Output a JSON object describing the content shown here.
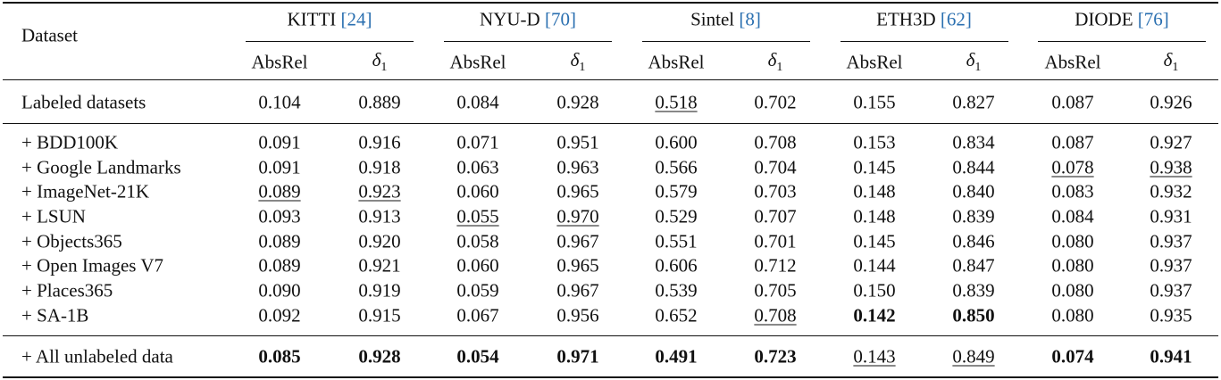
{
  "table": {
    "corner": "Dataset",
    "datasets": [
      {
        "name": "KITTI",
        "ref": "[24]"
      },
      {
        "name": "NYU-D",
        "ref": "[70]"
      },
      {
        "name": "Sintel",
        "ref": "[8]"
      },
      {
        "name": "ETH3D",
        "ref": "[62]"
      },
      {
        "name": "DIODE",
        "ref": "[76]"
      }
    ],
    "metrics": [
      {
        "text": "AbsRel"
      },
      {
        "text": "δ",
        "sub": "1"
      }
    ],
    "sections": [
      [
        {
          "label": "Labeled datasets",
          "values": [
            "0.104",
            "0.889",
            "0.084",
            "0.928",
            "0.518",
            "0.702",
            "0.155",
            "0.827",
            "0.087",
            "0.926"
          ],
          "bold": [],
          "underline": [
            4
          ]
        }
      ],
      [
        {
          "label": "+ BDD100K",
          "values": [
            "0.091",
            "0.916",
            "0.071",
            "0.951",
            "0.600",
            "0.708",
            "0.153",
            "0.834",
            "0.087",
            "0.927"
          ],
          "bold": [],
          "underline": []
        },
        {
          "label": "+ Google Landmarks",
          "values": [
            "0.091",
            "0.918",
            "0.063",
            "0.963",
            "0.566",
            "0.704",
            "0.145",
            "0.844",
            "0.078",
            "0.938"
          ],
          "bold": [],
          "underline": [
            8,
            9
          ]
        },
        {
          "label": "+ ImageNet-21K",
          "values": [
            "0.089",
            "0.923",
            "0.060",
            "0.965",
            "0.579",
            "0.703",
            "0.148",
            "0.840",
            "0.083",
            "0.932"
          ],
          "bold": [],
          "underline": [
            0,
            1
          ]
        },
        {
          "label": "+ LSUN",
          "values": [
            "0.093",
            "0.913",
            "0.055",
            "0.970",
            "0.529",
            "0.707",
            "0.148",
            "0.839",
            "0.084",
            "0.931"
          ],
          "bold": [],
          "underline": [
            2,
            3
          ]
        },
        {
          "label": "+ Objects365",
          "values": [
            "0.089",
            "0.920",
            "0.058",
            "0.967",
            "0.551",
            "0.701",
            "0.145",
            "0.846",
            "0.080",
            "0.937"
          ],
          "bold": [],
          "underline": []
        },
        {
          "label": "+ Open Images V7",
          "values": [
            "0.089",
            "0.921",
            "0.060",
            "0.965",
            "0.606",
            "0.712",
            "0.144",
            "0.847",
            "0.080",
            "0.937"
          ],
          "bold": [],
          "underline": []
        },
        {
          "label": "+ Places365",
          "values": [
            "0.090",
            "0.919",
            "0.059",
            "0.967",
            "0.539",
            "0.705",
            "0.150",
            "0.839",
            "0.080",
            "0.937"
          ],
          "bold": [],
          "underline": []
        },
        {
          "label": "+ SA-1B",
          "values": [
            "0.092",
            "0.915",
            "0.067",
            "0.956",
            "0.652",
            "0.708",
            "0.142",
            "0.850",
            "0.080",
            "0.935"
          ],
          "bold": [
            6,
            7
          ],
          "underline": [
            5
          ]
        }
      ],
      [
        {
          "label": "+ All unlabeled data",
          "values": [
            "0.085",
            "0.928",
            "0.054",
            "0.971",
            "0.491",
            "0.723",
            "0.143",
            "0.849",
            "0.074",
            "0.941"
          ],
          "bold": [
            0,
            1,
            2,
            3,
            4,
            5,
            8,
            9
          ],
          "underline": [
            6,
            7
          ]
        }
      ]
    ]
  }
}
